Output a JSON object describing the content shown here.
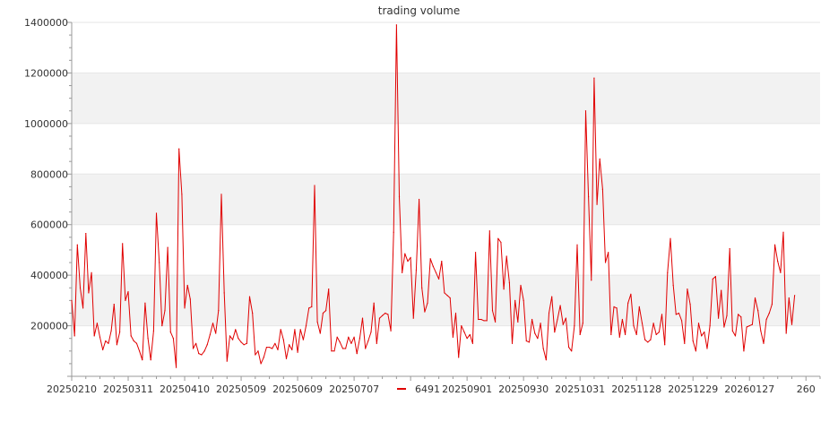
{
  "chart_data": {
    "type": "line",
    "title": "trading volume",
    "xlabel": "",
    "ylabel": "",
    "ylim": [
      0,
      1400000
    ],
    "yticks": [
      "200000",
      "400000",
      "600000",
      "800000",
      "1000000",
      "1200000",
      "1400000"
    ],
    "ytick_values": [
      200000,
      400000,
      600000,
      800000,
      1000000,
      1200000,
      1400000
    ],
    "xtick_labels": [
      "20250210",
      "20250311",
      "20250410",
      "20250509",
      "20250609",
      "20250707",
      "20250901",
      "20250930",
      "20251031",
      "20251128",
      "20251229",
      "20260127",
      "260"
    ],
    "xtick_index": [
      0,
      20,
      40,
      60,
      80,
      100,
      140,
      160,
      180,
      200,
      220,
      240,
      260
    ],
    "grid": true,
    "grid_bands": true,
    "legend_position": "bottom-center",
    "series": [
      {
        "name": "6491",
        "color": "#e00000",
        "values": [
          300000,
          160000,
          520000,
          350000,
          270000,
          565000,
          330000,
          410000,
          160000,
          210000,
          155000,
          105000,
          140000,
          130000,
          180000,
          285000,
          125000,
          175000,
          525000,
          300000,
          335000,
          160000,
          140000,
          130000,
          100000,
          65000,
          290000,
          150000,
          65000,
          180000,
          645000,
          450000,
          200000,
          260000,
          510000,
          175000,
          150000,
          35000,
          900000,
          720000,
          270000,
          360000,
          305000,
          110000,
          130000,
          90000,
          85000,
          100000,
          125000,
          165000,
          210000,
          170000,
          260000,
          720000,
          330000,
          60000,
          160000,
          145000,
          185000,
          150000,
          135000,
          125000,
          130000,
          315000,
          250000,
          85000,
          100000,
          50000,
          75000,
          115000,
          115000,
          110000,
          130000,
          105000,
          185000,
          145000,
          70000,
          125000,
          105000,
          185000,
          95000,
          185000,
          145000,
          200000,
          270000,
          275000,
          755000,
          215000,
          170000,
          250000,
          260000,
          345000,
          100000,
          100000,
          155000,
          135000,
          110000,
          110000,
          155000,
          130000,
          155000,
          90000,
          150000,
          230000,
          110000,
          140000,
          175000,
          290000,
          130000,
          230000,
          240000,
          250000,
          245000,
          180000,
          570000,
          1390000,
          710000,
          410000,
          485000,
          455000,
          470000,
          230000,
          420000,
          700000,
          350000,
          255000,
          290000,
          465000,
          435000,
          410000,
          385000,
          455000,
          330000,
          320000,
          310000,
          155000,
          250000,
          75000,
          200000,
          175000,
          150000,
          165000,
          130000,
          490000,
          225000,
          225000,
          220000,
          220000,
          575000,
          260000,
          215000,
          545000,
          530000,
          345000,
          475000,
          370000,
          130000,
          300000,
          215000,
          360000,
          300000,
          140000,
          135000,
          225000,
          170000,
          150000,
          210000,
          110000,
          65000,
          250000,
          315000,
          175000,
          225000,
          280000,
          205000,
          230000,
          115000,
          100000,
          200000,
          520000,
          165000,
          210000,
          1050000,
          710000,
          380000,
          1180000,
          680000,
          860000,
          740000,
          450000,
          490000,
          165000,
          275000,
          270000,
          155000,
          225000,
          165000,
          290000,
          325000,
          200000,
          165000,
          275000,
          210000,
          145000,
          135000,
          145000,
          210000,
          165000,
          175000,
          245000,
          125000,
          410000,
          545000,
          360000,
          245000,
          250000,
          220000,
          130000,
          345000,
          285000,
          140000,
          100000,
          210000,
          160000,
          175000,
          110000,
          200000,
          385000,
          395000,
          230000,
          340000,
          195000,
          240000,
          505000,
          180000,
          160000,
          245000,
          235000,
          100000,
          195000,
          200000,
          205000,
          310000,
          260000,
          180000,
          130000,
          225000,
          250000,
          285000,
          520000,
          455000,
          410000,
          570000,
          170000,
          310000,
          205000,
          320000
        ]
      }
    ]
  }
}
